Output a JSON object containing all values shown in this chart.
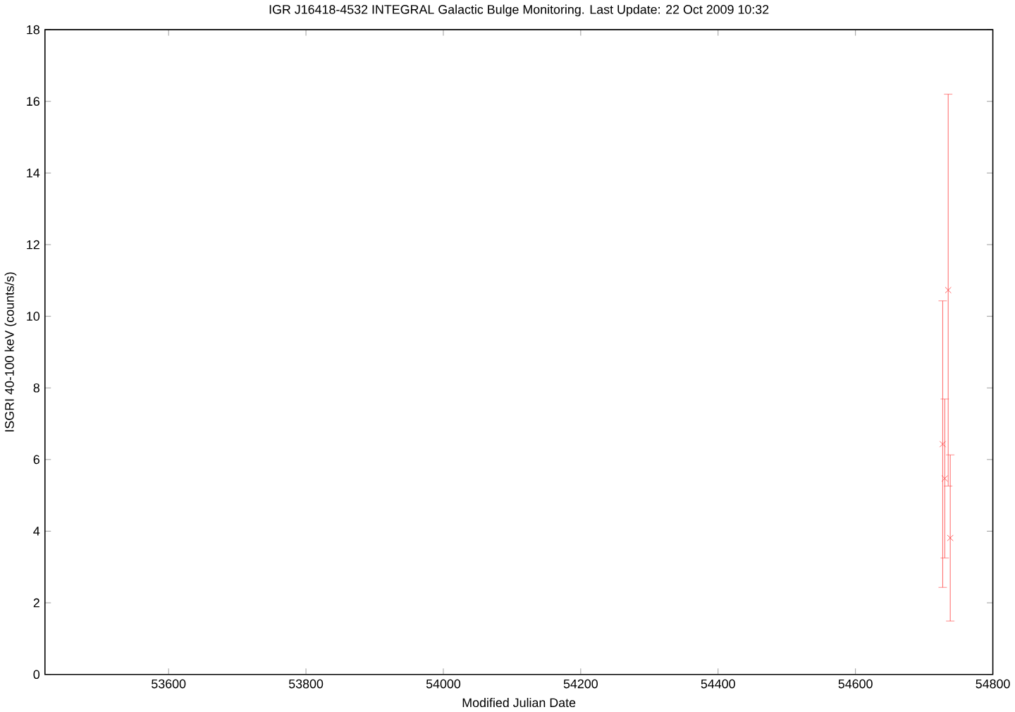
{
  "chart_data": {
    "type": "scatter",
    "title": "IGR J16418-4532   INTEGRAL Galactic Bulge Monitoring.  Last Update: 22 Oct 2009 10:32",
    "xlabel": "Modified Julian Date",
    "ylabel": "ISGRI 40-100 keV (counts/s)",
    "x": [
      54727,
      54730,
      54735,
      54738
    ],
    "series": [
      {
        "color": "#ff3b3b",
        "values": [
          6.43,
          5.47,
          10.73,
          3.81
        ],
        "errors": [
          4.0,
          2.22,
          5.47,
          2.32
        ]
      }
    ],
    "marker": "cross",
    "xlim": [
      53420,
      54800
    ],
    "xticks": [
      53600,
      53800,
      54000,
      54200,
      54400,
      54600,
      54800
    ],
    "ylim": [
      0,
      18
    ],
    "yticks": [
      0,
      2,
      4,
      6,
      8,
      10,
      12,
      14,
      16,
      18
    ]
  }
}
